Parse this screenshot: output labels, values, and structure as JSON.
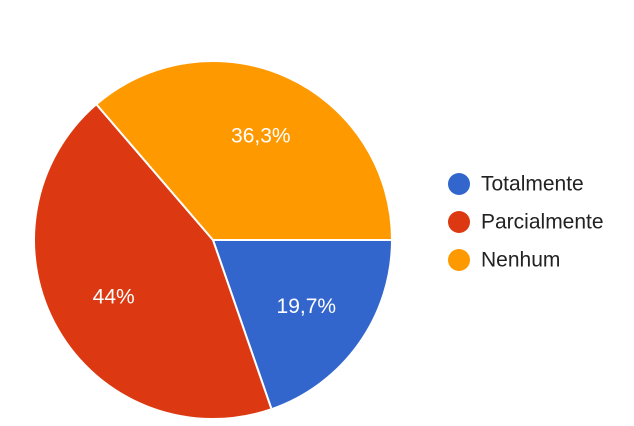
{
  "chart_data": {
    "type": "pie",
    "title": "",
    "slices": [
      {
        "label": "Totalmente",
        "value": 19.7,
        "display": "19,7%",
        "color": "#3366cc"
      },
      {
        "label": "Parcialmente",
        "value": 44.0,
        "display": "44%",
        "color": "#dc3912"
      },
      {
        "label": "Nenhum",
        "value": 36.3,
        "display": "36,3%",
        "color": "#ff9900"
      }
    ],
    "start_angle_deg": 90,
    "direction": "clockwise",
    "legend_position": "right"
  }
}
